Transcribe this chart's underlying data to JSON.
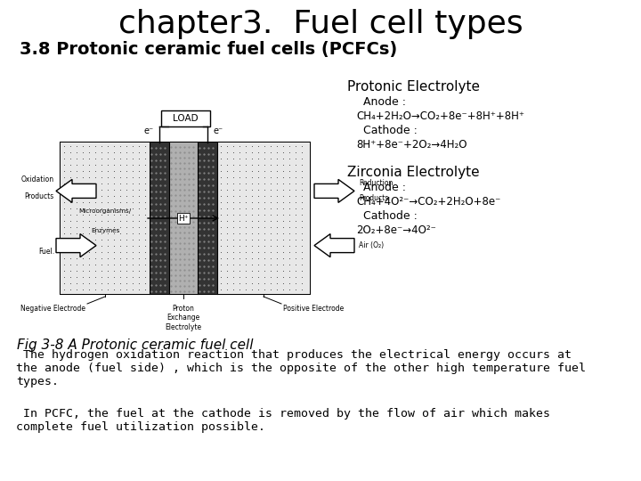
{
  "title": "chapter3.  Fuel cell types",
  "subtitle": "3.8 Protonic ceramic fuel cells (PCFCs)",
  "fig_caption": "Fig 3-8 A Protonic ceramic fuel cell",
  "protonic_title": "Protonic Electrolyte",
  "protonic_anode_label": "  Anode :",
  "protonic_anode_eq": "CH₄+2H₂O→CO₂+8e⁻+8H⁺+8H⁺",
  "protonic_cathode_label": "  Cathode :",
  "protonic_cathode_eq": "8H⁺+8e⁻+2O₂→4H₂O",
  "zirconia_title": "Zirconia Electrolyte",
  "zirconia_anode_label": "  Anode :",
  "zirconia_anode_eq": "CH₄+4O²⁻→CO₂+2H₂O+8e⁻",
  "zirconia_cathode_label": "  Cathode :",
  "zirconia_cathode_eq": "2O₂+8e⁻→4O²⁻",
  "para1": " The hydrogen oxidation reaction that produces the electrical energy occurs at\nthe anode (fuel side) , which is the opposite of the other high temperature fuel\ntypes.",
  "para2": " In PCFC, the fuel at the cathode is removed by the flow of air which makes\ncomplete fuel utilization possible.",
  "bg_color": "#ffffff",
  "text_color": "#000000",
  "title_fontsize": 26,
  "subtitle_fontsize": 14,
  "body_fontsize": 9.5,
  "eq_fontsize": 9,
  "caption_fontsize": 11
}
